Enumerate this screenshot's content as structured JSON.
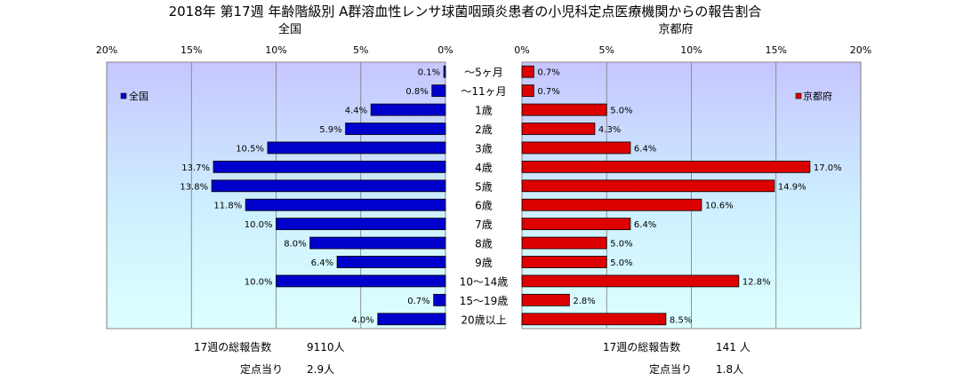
{
  "chart_data": {
    "type": "bar",
    "orientation": "horizontal-butterfly",
    "title": "2018年 第17週 年齢階級別 A群溶血性レンサ球菌咽頭炎患者の小児科定点医療機関からの報告割合",
    "categories": [
      "～5ヶ月",
      "～11ヶ月",
      "1歳",
      "2歳",
      "3歳",
      "4歳",
      "5歳",
      "6歳",
      "7歳",
      "8歳",
      "9歳",
      "10～14歳",
      "15～19歳",
      "20歳以上"
    ],
    "xlim": [
      0,
      20
    ],
    "ticks": [
      "0%",
      "5%",
      "10%",
      "15%",
      "20%"
    ],
    "grid": "vertical",
    "series": [
      {
        "name": "全国",
        "side": "left",
        "color": "#0000cc",
        "values": [
          0.1,
          0.8,
          4.4,
          5.9,
          10.5,
          13.7,
          13.8,
          11.8,
          10.0,
          8.0,
          6.4,
          10.0,
          0.7,
          4.0
        ],
        "labels": [
          "0.1%",
          "0.8%",
          "4.4%",
          "5.9%",
          "10.5%",
          "13.7%",
          "13.8%",
          "11.8%",
          "10.0%",
          "8.0%",
          "6.4%",
          "10.0%",
          "0.7%",
          "4.0%"
        ],
        "legend_position": "top-left"
      },
      {
        "name": "京都府",
        "side": "right",
        "color": "#dd0000",
        "values": [
          0.7,
          0.7,
          5.0,
          4.3,
          6.4,
          17.0,
          14.9,
          10.6,
          6.4,
          5.0,
          5.0,
          12.8,
          2.8,
          8.5
        ],
        "labels": [
          "0.7%",
          "0.7%",
          "5.0%",
          "4.3%",
          "6.4%",
          "17.0%",
          "14.9%",
          "10.6%",
          "6.4%",
          "5.0%",
          "5.0%",
          "12.8%",
          "2.8%",
          "8.5%"
        ],
        "legend_position": "top-right"
      }
    ]
  },
  "footer": {
    "left": {
      "total_label": "17週の総報告数",
      "total_value": "9110人",
      "per_label": "定点当り",
      "per_value": "2.9人"
    },
    "right": {
      "total_label": "17週の総報告数",
      "total_value": "141 人",
      "per_label": "定点当り",
      "per_value": "1.8人"
    }
  }
}
